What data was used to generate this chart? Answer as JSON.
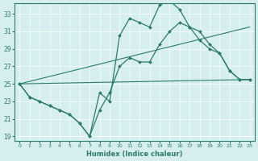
{
  "title": "",
  "xlabel": "Humidex (Indice chaleur)",
  "bg_color": "#d6eef0",
  "line_color": "#2d7a6e",
  "grid_color": "#ffffff",
  "xlim": [
    -0.5,
    23.5
  ],
  "ylim": [
    18.5,
    34.2
  ],
  "xticks": [
    0,
    1,
    2,
    3,
    4,
    5,
    6,
    7,
    8,
    9,
    10,
    11,
    12,
    13,
    14,
    15,
    16,
    17,
    18,
    19,
    20,
    21,
    22,
    23
  ],
  "yticks": [
    19,
    21,
    23,
    25,
    27,
    29,
    31,
    33
  ],
  "line1_x": [
    0,
    1,
    2,
    3,
    4,
    5,
    6,
    7,
    8,
    9,
    10,
    11,
    12,
    13,
    14,
    15,
    16,
    17,
    18,
    19,
    20,
    21,
    22,
    23
  ],
  "line1_y": [
    25.0,
    23.5,
    23.0,
    22.5,
    22.0,
    21.5,
    20.5,
    19.0,
    24.0,
    23.0,
    30.5,
    32.5,
    32.0,
    31.5,
    34.0,
    34.5,
    33.5,
    31.5,
    31.0,
    29.5,
    28.5,
    26.5,
    25.5,
    25.5
  ],
  "line2_x": [
    0,
    1,
    2,
    3,
    4,
    5,
    6,
    7,
    8,
    9,
    10,
    11,
    12,
    13,
    14,
    15,
    16,
    17,
    18,
    19,
    20,
    21,
    22,
    23
  ],
  "line2_y": [
    25.0,
    23.5,
    23.0,
    22.5,
    22.0,
    21.5,
    20.5,
    19.0,
    22.0,
    24.0,
    27.0,
    28.0,
    27.5,
    27.5,
    29.5,
    31.0,
    32.0,
    31.5,
    30.0,
    29.0,
    28.5,
    26.5,
    25.5,
    25.5
  ],
  "line3_x": [
    0,
    23
  ],
  "line3_y": [
    25.0,
    25.5
  ],
  "line4_x": [
    0,
    23
  ],
  "line4_y": [
    25.0,
    31.5
  ]
}
